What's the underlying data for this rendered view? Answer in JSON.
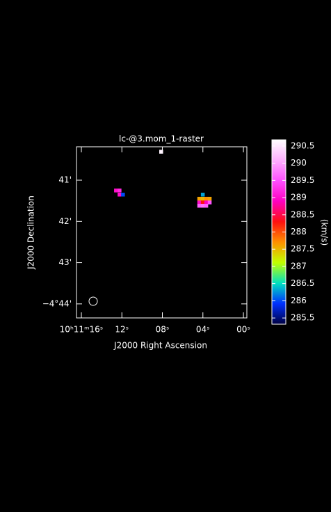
{
  "chart_data": {
    "type": "heatmap",
    "title": "lc-@3.mom_1-raster",
    "x_label": "J2000 Right Ascension",
    "y_label": "J2000 Declination",
    "colorbar_label": "(km/s)",
    "xlim": [
      16.48,
      -0.34
    ],
    "xticks": [
      {
        "value": 16,
        "label": "10ʰ11ᵐ16ˢ"
      },
      {
        "value": 12,
        "label": "12ˢ"
      },
      {
        "value": 8,
        "label": "08ˢ"
      },
      {
        "value": 4,
        "label": "04ˢ"
      },
      {
        "value": 0,
        "label": "00ˢ"
      }
    ],
    "ylim": [
      44.34,
      40.19
    ],
    "yticks": [
      {
        "value": 41,
        "label": "41'"
      },
      {
        "value": 42,
        "label": "42'"
      },
      {
        "value": 43,
        "label": "43'"
      },
      {
        "value": 44,
        "label": "−4°44'"
      }
    ],
    "clim": [
      285.32,
      290.68
    ],
    "cticks": [
      285.5,
      286,
      286.5,
      287,
      287.5,
      288,
      288.5,
      289,
      289.5,
      290,
      290.5
    ],
    "colormap": [
      "#000040",
      "#0030ff",
      "#00e0c0",
      "#c0ff00",
      "#ff9000",
      "#ff1010",
      "#ff00c0",
      "#ff50ff",
      "#ffb0ff",
      "#ffffff"
    ],
    "x": [
      12.58,
      12.23,
      12.23,
      11.89,
      4.01,
      4.36,
      4.01,
      3.67,
      3.33,
      4.36,
      4.01,
      3.67,
      3.33,
      4.36,
      4.01,
      3.67,
      8.12
    ],
    "y": [
      41.25,
      41.25,
      41.35,
      41.35,
      41.35,
      41.45,
      41.45,
      41.45,
      41.45,
      41.54,
      41.54,
      41.54,
      41.54,
      41.62,
      41.62,
      41.62,
      40.31
    ],
    "values": [
      289.0,
      289.2,
      289.0,
      286.0,
      286.3,
      287.6,
      287.5,
      287.7,
      287.6,
      289.0,
      288.3,
      288.9,
      289.5,
      289.6,
      289.7,
      289.6,
      290.6
    ]
  }
}
